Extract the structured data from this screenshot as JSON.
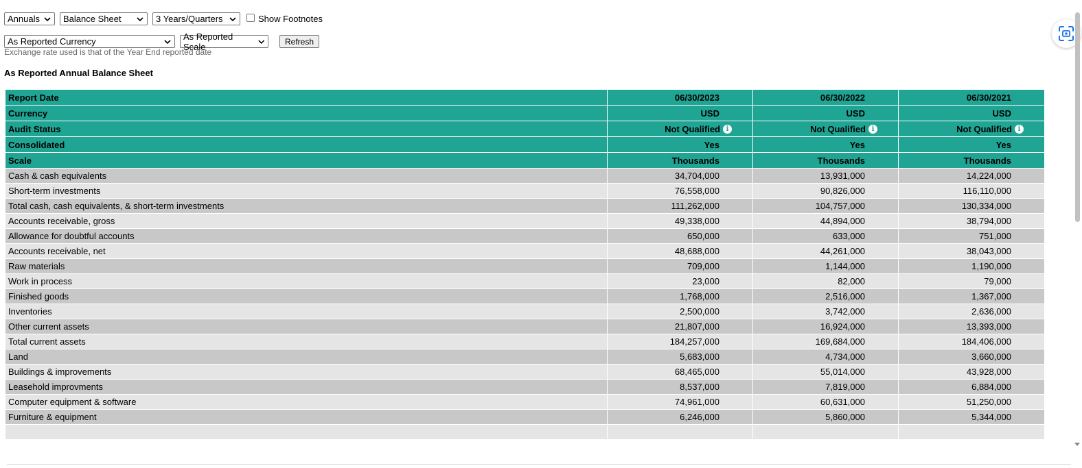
{
  "controls": {
    "period": "Annuals",
    "statement": "Balance Sheet",
    "range": "3 Years/Quarters",
    "footnotes_label": "Show Footnotes",
    "currency": "As Reported Currency",
    "scale": "As Reported Scale",
    "refresh_label": "Refresh"
  },
  "note": "Exchange rate used is that of the Year End reported date",
  "heading": "As Reported Annual Balance Sheet",
  "header_rows": [
    {
      "label": "Report Date",
      "values": [
        "06/30/2023",
        "06/30/2022",
        "06/30/2021"
      ]
    },
    {
      "label": "Currency",
      "values": [
        "USD",
        "USD",
        "USD"
      ]
    },
    {
      "label": "Audit Status",
      "values": [
        "Not Qualified",
        "Not Qualified",
        "Not Qualified"
      ]
    },
    {
      "label": "Consolidated",
      "values": [
        "Yes",
        "Yes",
        "Yes"
      ]
    },
    {
      "label": "Scale",
      "values": [
        "Thousands",
        "Thousands",
        "Thousands"
      ]
    }
  ],
  "rows": [
    {
      "label": "Cash & cash equivalents",
      "values": [
        "34,704,000",
        "13,931,000",
        "14,224,000"
      ]
    },
    {
      "label": "Short-term investments",
      "values": [
        "76,558,000",
        "90,826,000",
        "116,110,000"
      ]
    },
    {
      "label": "Total cash, cash equivalents, & short-term investments",
      "values": [
        "111,262,000",
        "104,757,000",
        "130,334,000"
      ]
    },
    {
      "label": "Accounts receivable, gross",
      "values": [
        "49,338,000",
        "44,894,000",
        "38,794,000"
      ]
    },
    {
      "label": "Allowance for doubtful accounts",
      "values": [
        "650,000",
        "633,000",
        "751,000"
      ]
    },
    {
      "label": "Accounts receivable, net",
      "values": [
        "48,688,000",
        "44,261,000",
        "38,043,000"
      ]
    },
    {
      "label": "Raw materials",
      "values": [
        "709,000",
        "1,144,000",
        "1,190,000"
      ]
    },
    {
      "label": "Work in process",
      "values": [
        "23,000",
        "82,000",
        "79,000"
      ]
    },
    {
      "label": "Finished goods",
      "values": [
        "1,768,000",
        "2,516,000",
        "1,367,000"
      ]
    },
    {
      "label": "Inventories",
      "values": [
        "2,500,000",
        "3,742,000",
        "2,636,000"
      ]
    },
    {
      "label": "Other current assets",
      "values": [
        "21,807,000",
        "16,924,000",
        "13,393,000"
      ]
    },
    {
      "label": "Total current assets",
      "values": [
        "184,257,000",
        "169,684,000",
        "184,406,000"
      ]
    },
    {
      "label": "Land",
      "values": [
        "5,683,000",
        "4,734,000",
        "3,660,000"
      ]
    },
    {
      "label": "Buildings & improvements",
      "values": [
        "68,465,000",
        "55,014,000",
        "43,928,000"
      ]
    },
    {
      "label": "Leasehold improvments",
      "values": [
        "8,537,000",
        "7,819,000",
        "6,884,000"
      ]
    },
    {
      "label": "Computer equipment & software",
      "values": [
        "74,961,000",
        "60,631,000",
        "51,250,000"
      ]
    },
    {
      "label": "Furniture & equipment",
      "values": [
        "6,246,000",
        "5,860,000",
        "5,344,000"
      ]
    }
  ],
  "colors": {
    "header_bg": "#20a595",
    "row_dark": "#c8c8c8",
    "row_light": "#e5e5e5"
  }
}
